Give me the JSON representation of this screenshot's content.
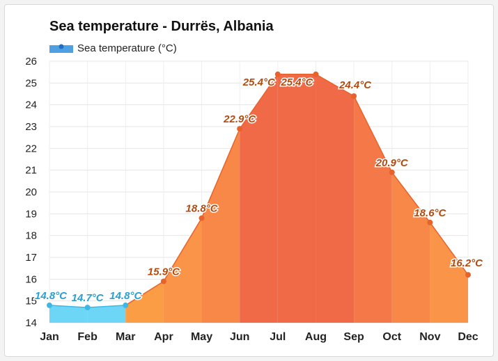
{
  "chart_data": {
    "type": "area",
    "title": "Sea temperature - Durrës, Albania",
    "legend": {
      "label": "Sea temperature (°C)",
      "placement": "top-left"
    },
    "categories": [
      "Jan",
      "Feb",
      "Mar",
      "Apr",
      "May",
      "Jun",
      "Jul",
      "Aug",
      "Sep",
      "Oct",
      "Nov",
      "Dec"
    ],
    "series": [
      {
        "name": "Sea temperature (°C)",
        "values": [
          14.8,
          14.7,
          14.8,
          15.9,
          18.8,
          22.9,
          25.4,
          25.4,
          24.4,
          20.9,
          18.6,
          16.2
        ],
        "labels": [
          "14.8°C",
          "14.7°C",
          "14.8°C",
          "15.9°C",
          "18.8°C",
          "22.9°C",
          "25.4°C",
          "25.4°C",
          "24.4°C",
          "20.9°C",
          "18.6°C",
          "16.2°C"
        ]
      }
    ],
    "ylim": [
      14,
      26
    ],
    "yticks": [
      "14",
      "15",
      "16",
      "17",
      "18",
      "19",
      "20",
      "21",
      "22",
      "23",
      "24",
      "25",
      "26"
    ],
    "grid": true,
    "colors": {
      "cold": "#6dd5f5",
      "cold_line": "#3fb6e4",
      "cold_label": "#2a9fd0",
      "warm_low": "#fb9d45",
      "warm_mid": "#f88848",
      "warm_high": "#f06a48",
      "warm_line": "#e8622c",
      "warm_label": "#b34a0e",
      "legend_swatch": "#4f9fe3"
    }
  }
}
